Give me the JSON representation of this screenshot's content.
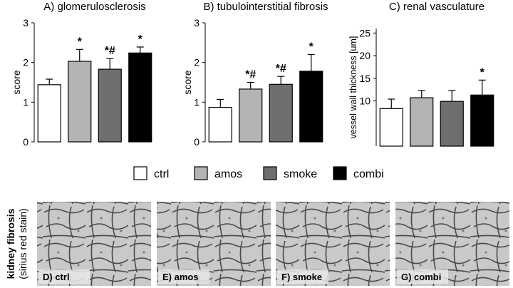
{
  "chart_data": [
    {
      "type": "bar",
      "title": "A) glomerulosclerosis",
      "ylabel": "score",
      "values": [
        1.44,
        2.03,
        1.83,
        2.24
      ],
      "errors": [
        0.14,
        0.3,
        0.27,
        0.15
      ],
      "markers": [
        null,
        "*",
        "*#",
        "*"
      ],
      "ylim": [
        0,
        3
      ],
      "yticks": [
        0,
        1,
        2,
        3
      ]
    },
    {
      "type": "bar",
      "title": "B) tubulointerstitial fibrosis",
      "ylabel": "score",
      "values": [
        0.87,
        1.33,
        1.45,
        1.78
      ],
      "errors": [
        0.2,
        0.17,
        0.2,
        0.42
      ],
      "markers": [
        null,
        "*#",
        "*#",
        "*"
      ],
      "ylim": [
        0,
        3
      ],
      "yticks": [
        0,
        1,
        2,
        3
      ]
    },
    {
      "type": "bar",
      "title": "C) renal vasculature",
      "ylabel": "vessel wall thickness [um]",
      "values": [
        8.3,
        10.7,
        9.9,
        11.3
      ],
      "errors": [
        2.1,
        1.6,
        2.4,
        3.3
      ],
      "markers": [
        null,
        null,
        null,
        "*"
      ],
      "ylim": [
        0,
        26
      ],
      "yticks": [
        10,
        15,
        20,
        25
      ]
    }
  ],
  "legend": [
    {
      "name": "ctrl",
      "color": "#ffffff"
    },
    {
      "name": "amos",
      "color": "#b4b4b4"
    },
    {
      "name": "smoke",
      "color": "#6e6e6e"
    },
    {
      "name": "combi",
      "color": "#000000"
    }
  ],
  "images": {
    "side_label": "kidney fibrosis",
    "side_sublabel": "(sirius red stain)",
    "panels": [
      {
        "label": "D) ctrl"
      },
      {
        "label": "E) amos"
      },
      {
        "label": "F) smoke"
      },
      {
        "label": "G) combi"
      }
    ]
  }
}
